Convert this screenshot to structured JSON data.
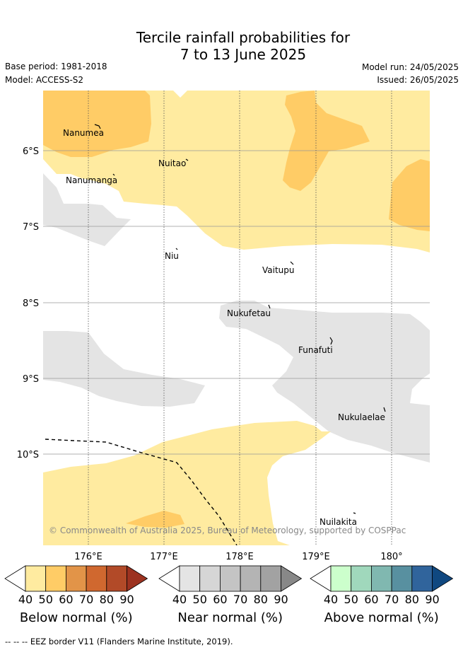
{
  "title": {
    "line1": "Tercile rainfall probabilities for",
    "line2": "7 to 13 June 2025"
  },
  "meta": {
    "base_period": "Base period: 1981-2018",
    "model": "Model: ACCESS-S2",
    "model_run": "Model run: 24/05/2025",
    "issued": "Issued: 26/05/2025"
  },
  "map": {
    "lat_labels": [
      "6°S",
      "7°S",
      "8°S",
      "9°S",
      "10°S"
    ],
    "lon_labels": [
      "176°E",
      "177°E",
      "178°E",
      "179°E",
      "180°"
    ],
    "islands": [
      {
        "name": "Nanumea"
      },
      {
        "name": "Nuitao"
      },
      {
        "name": "Nanumanga"
      },
      {
        "name": "Niu"
      },
      {
        "name": "Vaitupu"
      },
      {
        "name": "Nukufetau"
      },
      {
        "name": "Funafuti"
      },
      {
        "name": "Nukulaelae"
      },
      {
        "name": "Nuilakita"
      }
    ],
    "copyright": "© Commonwealth of Australia 2025, Bureau of Meteorology, supported by COSPPac",
    "colors": {
      "below_40": "#ffeba0",
      "below_50": "#ffcc66",
      "near_40": "#e4e4e4"
    }
  },
  "colorbars": [
    {
      "label": "Below normal (%)",
      "ticks": [
        "40",
        "50",
        "60",
        "70",
        "80",
        "90"
      ],
      "colors": [
        "#ffeba0",
        "#ffcc66",
        "#e29448",
        "#d0682f",
        "#b24a28",
        "#9c3220"
      ]
    },
    {
      "label": "Near normal (%)",
      "ticks": [
        "40",
        "50",
        "60",
        "70",
        "80",
        "90"
      ],
      "colors": [
        "#e4e4e4",
        "#d6d6d6",
        "#c4c4c4",
        "#b4b4b4",
        "#a2a2a2",
        "#888888"
      ]
    },
    {
      "label": "Above normal (%)",
      "ticks": [
        "40",
        "50",
        "60",
        "70",
        "80",
        "90"
      ],
      "colors": [
        "#ccffcc",
        "#a0d8bc",
        "#80b8b0",
        "#5890a0",
        "#30649c",
        "#104880"
      ]
    }
  ],
  "footer": "-- -- -- EEZ border V11 (Flanders Marine Institute, 2019)."
}
